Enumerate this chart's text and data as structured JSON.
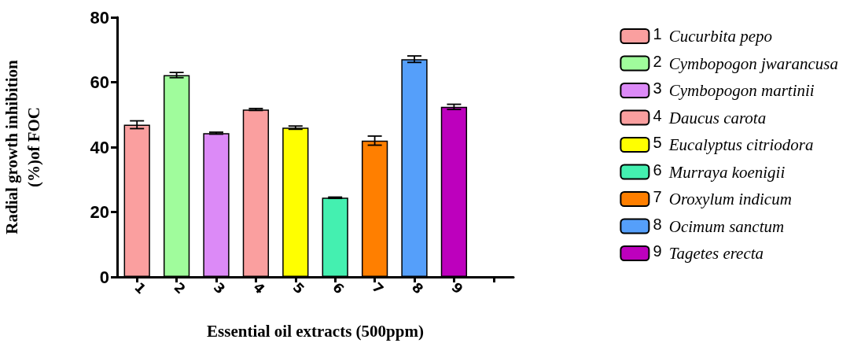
{
  "chart_data": {
    "type": "bar",
    "xlabel": "Essential oil extracts (500ppm)",
    "ylabel": "Radial growth inhibition\n(%)of FOC",
    "categories": [
      "1",
      "2",
      "3",
      "4",
      "5",
      "6",
      "7",
      "8",
      "9",
      null
    ],
    "series": [
      {
        "name": "1 Cucurbita pepo",
        "color": "#fa9f9f",
        "values": [
          46.9,
          null,
          null,
          null,
          null,
          null,
          null,
          null,
          null,
          null
        ],
        "errors": [
          1.2,
          null,
          null,
          null,
          null,
          null,
          null,
          null,
          null,
          null
        ]
      },
      {
        "name": "2 Cymbopogon jwarancusa",
        "color": "#a0fc9c",
        "values": [
          null,
          62.2,
          null,
          null,
          null,
          null,
          null,
          null,
          null,
          null
        ],
        "errors": [
          null,
          0.8,
          null,
          null,
          null,
          null,
          null,
          null,
          null,
          null
        ]
      },
      {
        "name": "3 Cymbopogon martinii",
        "color": "#dc8af7",
        "values": [
          null,
          null,
          44.3,
          null,
          null,
          null,
          null,
          null,
          null,
          null
        ],
        "errors": [
          null,
          null,
          0.3,
          null,
          null,
          null,
          null,
          null,
          null,
          null
        ]
      },
      {
        "name": "4 Daucus carota",
        "color": "#fa9f9f",
        "values": [
          null,
          null,
          null,
          51.6,
          null,
          null,
          null,
          null,
          null,
          null
        ],
        "errors": [
          null,
          null,
          null,
          0.3,
          null,
          null,
          null,
          null,
          null,
          null
        ]
      },
      {
        "name": "5 Eucalyptus citriodora",
        "color": "#ffff00",
        "values": [
          null,
          null,
          null,
          null,
          46.0,
          null,
          null,
          null,
          null,
          null
        ],
        "errors": [
          null,
          null,
          null,
          null,
          0.5,
          null,
          null,
          null,
          null,
          null
        ]
      },
      {
        "name": "6 Murraya koenigii",
        "color": "#44f0b0",
        "values": [
          null,
          null,
          null,
          null,
          null,
          24.4,
          null,
          null,
          null,
          null
        ],
        "errors": [
          null,
          null,
          null,
          null,
          null,
          0.2,
          null,
          null,
          null,
          null
        ]
      },
      {
        "name": "7 Oroxylum indicum",
        "color": "#ff7f00",
        "values": [
          null,
          null,
          null,
          null,
          null,
          null,
          42.0,
          null,
          null,
          null
        ],
        "errors": [
          null,
          null,
          null,
          null,
          null,
          null,
          1.4,
          null,
          null,
          null
        ]
      },
      {
        "name": "8 Ocimum sanctum",
        "color": "#559ffa",
        "values": [
          null,
          null,
          null,
          null,
          null,
          null,
          null,
          67.1,
          null,
          null
        ],
        "errors": [
          null,
          null,
          null,
          null,
          null,
          null,
          null,
          1.0,
          null,
          null
        ]
      },
      {
        "name": "9 Tagetes erecta",
        "color": "#bd00bd",
        "values": [
          null,
          null,
          null,
          null,
          null,
          null,
          null,
          null,
          52.4,
          null
        ],
        "errors": [
          null,
          null,
          null,
          null,
          null,
          null,
          null,
          null,
          0.8,
          null
        ]
      }
    ],
    "ylim": [
      0,
      80
    ],
    "yticks": [
      0,
      20,
      40,
      60,
      80
    ],
    "grid": false,
    "legend": "right"
  }
}
